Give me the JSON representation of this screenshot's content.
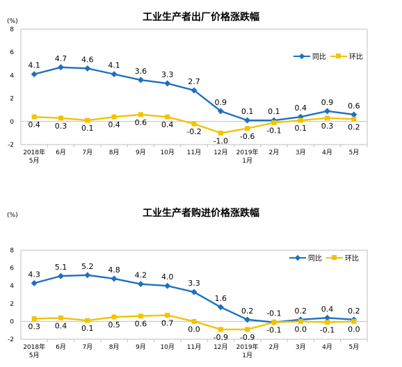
{
  "chart_data": [
    {
      "type": "line",
      "title": "工业生产者出厂价格涨跌幅",
      "unit": "(%)",
      "categories": [
        [
          "2018年",
          "5月"
        ],
        [
          "6月"
        ],
        [
          "7月"
        ],
        [
          "8月"
        ],
        [
          "9月"
        ],
        [
          "10月"
        ],
        [
          "11月"
        ],
        [
          "12月"
        ],
        [
          "2019年",
          "1月"
        ],
        [
          "2月"
        ],
        [
          "3月"
        ],
        [
          "4月"
        ],
        [
          "5月"
        ]
      ],
      "series": [
        {
          "name": "同比",
          "color": "#1f6fc0",
          "marker": "diamond",
          "values": [
            4.1,
            4.7,
            4.6,
            4.1,
            3.6,
            3.3,
            2.7,
            0.9,
            0.1,
            0.1,
            0.4,
            0.9,
            0.6
          ]
        },
        {
          "name": "环比",
          "color": "#f2c300",
          "marker": "square",
          "values": [
            0.4,
            0.3,
            0.1,
            0.4,
            0.6,
            0.4,
            -0.2,
            -1.0,
            -0.6,
            -0.1,
            0.1,
            0.3,
            0.2
          ]
        }
      ],
      "y_ticks": [
        -2,
        0,
        2,
        4,
        6,
        8
      ],
      "ylim": [
        -2,
        8
      ],
      "legend": "right"
    },
    {
      "type": "line",
      "title": "工业生产者购进价格涨跌幅",
      "unit": "(%)",
      "categories": [
        [
          "2018年",
          "5月"
        ],
        [
          "6月"
        ],
        [
          "7月"
        ],
        [
          "8月"
        ],
        [
          "9月"
        ],
        [
          "10月"
        ],
        [
          "11月"
        ],
        [
          "12月"
        ],
        [
          "2019年",
          "1月"
        ],
        [
          "2月"
        ],
        [
          "3月"
        ],
        [
          "4月"
        ],
        [
          "5月"
        ]
      ],
      "series": [
        {
          "name": "同比",
          "color": "#1f6fc0",
          "marker": "diamond",
          "values": [
            4.3,
            5.1,
            5.2,
            4.8,
            4.2,
            4.0,
            3.3,
            1.6,
            0.2,
            -0.1,
            0.2,
            0.4,
            0.2
          ]
        },
        {
          "name": "环比",
          "color": "#f2c300",
          "marker": "square",
          "values": [
            0.3,
            0.4,
            0.1,
            0.5,
            0.6,
            0.7,
            0.0,
            -0.9,
            -0.9,
            -0.1,
            0.0,
            -0.1,
            0.0
          ]
        }
      ],
      "y_ticks": [
        -2,
        0,
        2,
        4,
        6,
        8
      ],
      "ylim": [
        -2,
        8
      ],
      "legend": "right"
    }
  ]
}
